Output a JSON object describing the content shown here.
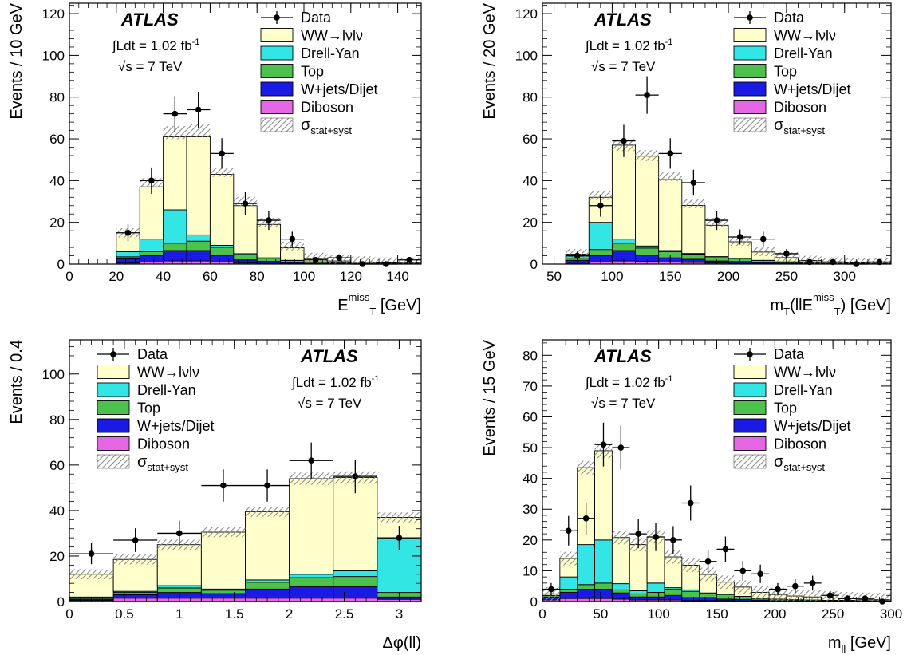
{
  "colors": {
    "ww": "#ffffcc",
    "dy": "#33e6e6",
    "top": "#4cc24c",
    "wjets": "#1a1ae6",
    "diboson": "#e666e6",
    "band": "#999999",
    "data": "#000000"
  },
  "legend_labels": {
    "data": "Data",
    "ww": "WW→lνlν",
    "dy": "Drell-Yan",
    "top": "Top",
    "wjets": "W+jets/Dijet",
    "diboson": "Diboson",
    "band_main": "σ",
    "band_sub": "stat+syst"
  },
  "atlas_label": "ATLAS",
  "lumi_text": "∫Ldt = 1.02 fb",
  "lumi_sup": "-1",
  "energy_text": "√s = 7 TeV",
  "chart_data": [
    {
      "type": "bar",
      "ylabel": "Events / 10 GeV",
      "xlabel_parts": {
        "main": "E",
        "sub": "T",
        "sup": "miss",
        "rest": " [GeV]"
      },
      "xlim": [
        0,
        150
      ],
      "ylim": [
        0,
        125
      ],
      "xticks": [
        0,
        20,
        40,
        60,
        80,
        100,
        120,
        140
      ],
      "yticks": [
        0,
        20,
        40,
        60,
        80,
        100,
        120
      ],
      "edges": [
        20,
        30,
        40,
        50,
        60,
        70,
        80,
        90,
        100,
        110,
        120,
        130,
        140,
        150
      ],
      "series": [
        {
          "key": "diboson",
          "values": [
            0.5,
            1,
            1.5,
            1.5,
            1,
            0.5,
            0.3,
            0.2,
            0.1,
            0.1,
            0.1,
            0.1,
            0.1
          ]
        },
        {
          "key": "wjets",
          "values": [
            2,
            3,
            5,
            5,
            3,
            1.5,
            1,
            0.5,
            0.3,
            0.2,
            0.1,
            0.1,
            0.1
          ]
        },
        {
          "key": "top",
          "values": [
            1,
            2,
            3.5,
            4.5,
            4,
            2.5,
            1.5,
            1,
            0.6,
            0.4,
            0.2,
            0.2,
            0.1
          ]
        },
        {
          "key": "dy",
          "values": [
            2.5,
            6,
            16,
            3,
            1,
            0.5,
            0.2,
            0.1,
            0.1,
            0,
            0,
            0,
            0
          ]
        },
        {
          "key": "ww",
          "values": [
            8,
            25,
            35,
            47,
            34,
            23,
            16,
            6,
            1.5,
            0.8,
            0.5,
            0.3,
            0.2
          ]
        }
      ],
      "band": [
        15,
        39,
        63,
        64,
        44,
        30,
        20,
        8.5,
        3.2,
        2.3,
        1.5,
        1,
        0.5
      ],
      "data": {
        "x": [
          25,
          35,
          45,
          55,
          65,
          75,
          85,
          95,
          105,
          115,
          125,
          135,
          145
        ],
        "y": [
          15,
          40,
          72,
          74,
          53,
          29,
          21,
          12,
          2,
          3,
          0,
          0,
          2
        ],
        "err": [
          4,
          6.3,
          8.5,
          8.6,
          7.3,
          5.4,
          4.6,
          3.5,
          1.4,
          1.7,
          0,
          0,
          1.4
        ]
      },
      "legend_at": "right",
      "atlas_at": "left"
    },
    {
      "type": "bar",
      "ylabel": "Events / 20 GeV",
      "xlabel_parts": {
        "main": "m",
        "sub": "T",
        "mid": "(llE",
        "sub2": "T",
        "sup": "miss",
        "rest": ") [GeV]"
      },
      "xlim": [
        40,
        340
      ],
      "ylim": [
        0,
        125
      ],
      "xticks": [
        50,
        100,
        150,
        200,
        250,
        300
      ],
      "yticks": [
        0,
        20,
        40,
        60,
        80,
        100,
        120
      ],
      "edges": [
        60,
        80,
        100,
        120,
        140,
        160,
        180,
        200,
        220,
        240,
        260,
        280,
        300,
        320,
        340
      ],
      "series": [
        {
          "key": "diboson",
          "values": [
            0.3,
            1,
            1.5,
            1.2,
            1,
            0.8,
            0.5,
            0.4,
            0.3,
            0.2,
            0.1,
            0.1,
            0.1,
            0.1
          ]
        },
        {
          "key": "wjets",
          "values": [
            1.5,
            3,
            5,
            3,
            2,
            1.5,
            1,
            0.8,
            0.5,
            0.3,
            0.2,
            0.1,
            0.1,
            0.1
          ]
        },
        {
          "key": "top",
          "values": [
            1,
            3,
            3.5,
            3.5,
            3,
            2.5,
            2,
            1.5,
            1,
            0.6,
            0.4,
            0.3,
            0.2,
            0.1
          ]
        },
        {
          "key": "dy",
          "values": [
            1,
            13,
            2,
            1,
            0.5,
            0.3,
            0.1,
            0,
            0,
            0,
            0,
            0,
            0,
            0
          ]
        },
        {
          "key": "ww",
          "values": [
            1,
            12,
            45,
            43,
            34,
            23,
            15,
            8,
            4,
            2,
            1,
            0.5,
            0.3,
            0.2
          ]
        }
      ],
      "band": [
        5,
        33,
        57,
        52,
        42,
        29,
        20,
        11,
        6,
        3.5,
        1.8,
        1,
        0.7,
        0.5
      ],
      "data": {
        "x": [
          70,
          90,
          110,
          130,
          150,
          170,
          190,
          210,
          230,
          250,
          270,
          290,
          310,
          330
        ],
        "y": [
          4,
          28,
          59,
          81,
          53,
          39,
          21,
          13,
          12,
          5,
          1,
          1,
          0,
          1
        ],
        "err": [
          2,
          5.3,
          7.7,
          9,
          7.3,
          6.2,
          4.6,
          3.6,
          3.5,
          2.2,
          1,
          1,
          0,
          1
        ]
      },
      "legend_at": "right",
      "atlas_at": "left"
    },
    {
      "type": "bar",
      "ylabel": "Events / 0.4",
      "xlabel_parts": {
        "main": "Δφ(ll)"
      },
      "xlim": [
        0,
        3.2
      ],
      "ylim": [
        0,
        115
      ],
      "xticks": [
        0,
        0.5,
        1,
        1.5,
        2,
        2.5,
        3
      ],
      "xtick_labels": [
        "0",
        "0.5",
        "1",
        "1.5",
        "2",
        "2.5",
        "3"
      ],
      "yticks": [
        0,
        20,
        40,
        60,
        80,
        100
      ],
      "edges": [
        0,
        0.4,
        0.8,
        1.2,
        1.6,
        2.0,
        2.4,
        2.8,
        3.2
      ],
      "series": [
        {
          "key": "diboson",
          "values": [
            0.5,
            1.5,
            1.5,
            1.5,
            1.5,
            1.5,
            1.5,
            1
          ]
        },
        {
          "key": "wjets",
          "values": [
            0.5,
            1.5,
            2.5,
            2,
            4,
            5,
            5,
            1
          ]
        },
        {
          "key": "top",
          "values": [
            0.5,
            1,
            2,
            1.5,
            3,
            4,
            4.5,
            2
          ]
        },
        {
          "key": "dy",
          "values": [
            0.5,
            0.5,
            1,
            0.5,
            1,
            1.5,
            2.5,
            24
          ]
        },
        {
          "key": "ww",
          "values": [
            10,
            14,
            18,
            25,
            30,
            42,
            41,
            9
          ]
        }
      ],
      "band": [
        12,
        18.5,
        25,
        30.5,
        39.5,
        54,
        54.5,
        37
      ],
      "data": {
        "x": [
          0.2,
          0.6,
          1.0,
          1.4,
          1.8,
          2.2,
          2.6,
          3.0
        ],
        "y": [
          21,
          27,
          30,
          51,
          51,
          62,
          55,
          28
        ],
        "err": [
          4.6,
          5.2,
          5.5,
          7.1,
          7.1,
          7.9,
          7.4,
          5.3
        ]
      },
      "legend_at": "left",
      "atlas_at": "right"
    },
    {
      "type": "bar",
      "ylabel": "Events / 15 GeV",
      "xlabel_parts": {
        "main": "m",
        "sub": "ll",
        "rest": " [GeV]"
      },
      "xlim": [
        0,
        300
      ],
      "ylim": [
        0,
        85
      ],
      "xticks": [
        0,
        50,
        100,
        150,
        200,
        250,
        300
      ],
      "yticks": [
        0,
        10,
        20,
        30,
        40,
        50,
        60,
        70,
        80
      ],
      "edges": [
        0,
        15,
        30,
        45,
        60,
        75,
        90,
        105,
        120,
        135,
        150,
        165,
        180,
        195,
        210,
        225,
        240,
        255,
        270,
        285,
        300
      ],
      "series": [
        {
          "key": "diboson",
          "values": [
            0.5,
            1,
            1,
            1,
            0.8,
            0.5,
            0.5,
            0.5,
            0.3,
            0.3,
            0.3,
            0.2,
            0.2,
            0.1,
            0.1,
            0.1,
            0.1,
            0.1,
            0.1,
            0.1
          ]
        },
        {
          "key": "wjets",
          "values": [
            1,
            2,
            3,
            3,
            2,
            1,
            1,
            1.5,
            1,
            1,
            0.5,
            0.5,
            0.3,
            0.2,
            0.2,
            0.1,
            0.1,
            0.1,
            0.1,
            0.1
          ]
        },
        {
          "key": "top",
          "values": [
            0.5,
            1,
            1.5,
            2,
            1,
            1,
            1.5,
            2,
            2,
            1.5,
            1.5,
            1,
            0.5,
            0.5,
            0.3,
            0.3,
            0.2,
            0.2,
            0.1,
            0.1
          ]
        },
        {
          "key": "dy",
          "values": [
            0,
            4,
            13,
            14,
            2,
            1,
            3,
            0.5,
            0.5,
            0,
            0,
            0,
            0,
            0,
            0,
            0,
            0,
            0,
            0,
            0
          ]
        },
        {
          "key": "ww",
          "values": [
            0.5,
            6,
            25,
            29,
            15,
            15,
            15,
            10,
            8,
            6,
            4,
            3,
            2,
            1.5,
            1.2,
            1,
            0.8,
            0.5,
            0.4,
            0.3
          ]
        }
      ],
      "band": [
        2.5,
        14,
        43.5,
        49,
        20.8,
        18.5,
        21,
        14.5,
        11.8,
        8.8,
        6.3,
        4.7,
        3,
        2.3,
        1.8,
        1.5,
        1.2,
        0.9,
        0.7,
        0.6
      ],
      "data": {
        "x": [
          7.5,
          22.5,
          37.5,
          52.5,
          67.5,
          82.5,
          97.5,
          112.5,
          127.5,
          142.5,
          157.5,
          172.5,
          187.5,
          202.5,
          217.5,
          232.5,
          247.5,
          262.5,
          277.5,
          292.5
        ],
        "y": [
          4,
          23,
          27,
          51,
          50,
          22,
          21,
          20,
          32,
          13,
          17,
          10,
          9,
          4,
          5,
          6,
          2,
          1,
          1,
          0
        ],
        "err": [
          2,
          4.8,
          5.2,
          7.1,
          7.1,
          4.7,
          4.6,
          4.5,
          5.7,
          3.6,
          4.1,
          3.2,
          3,
          2,
          2.2,
          2.4,
          1.4,
          1,
          1,
          0
        ]
      },
      "legend_at": "right",
      "atlas_at": "left"
    }
  ]
}
